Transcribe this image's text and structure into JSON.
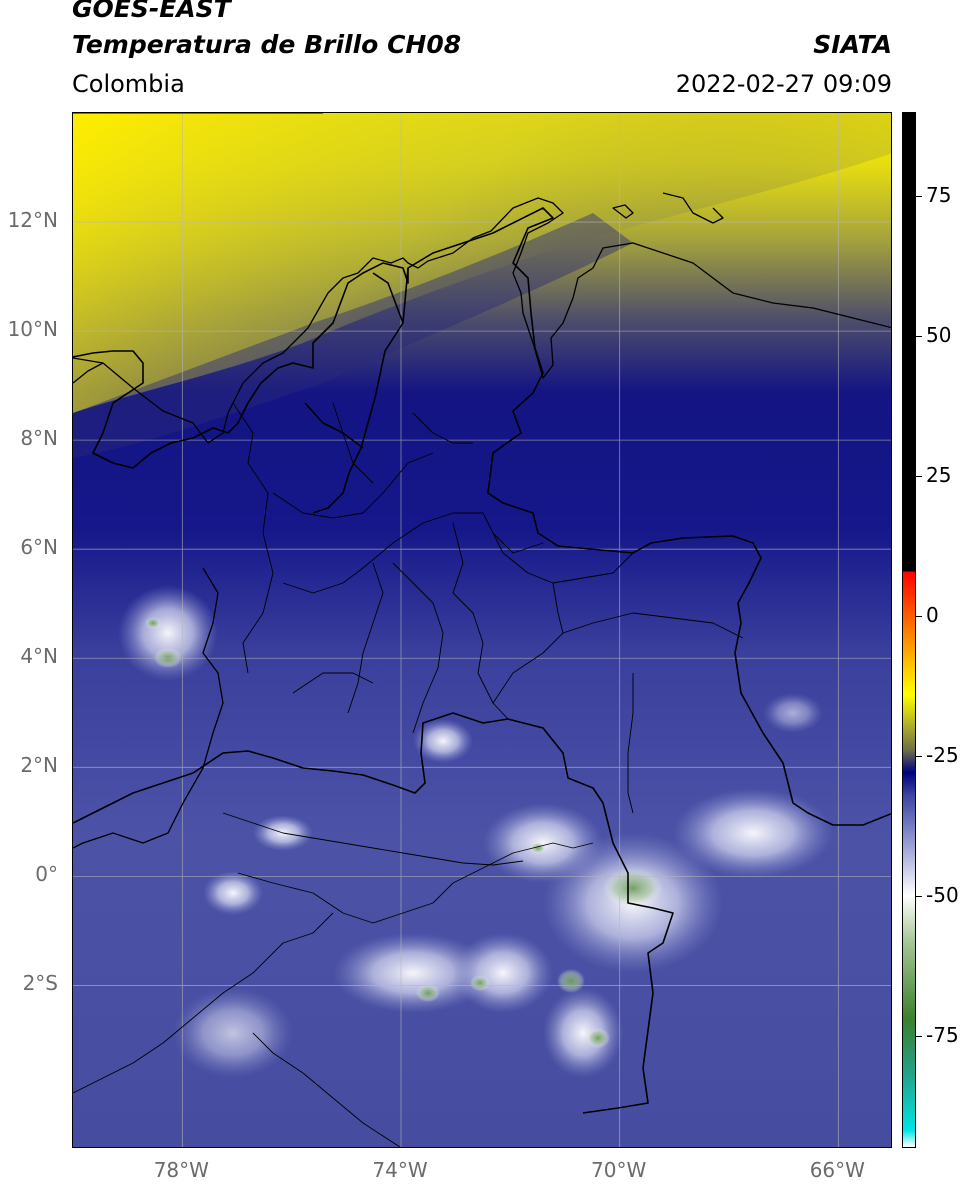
{
  "header": {
    "satellite": "GOES-EAST",
    "product": "Temperatura de Brillo CH08",
    "org": "SIATA",
    "region": "Colombia",
    "datetime": "2022-02-27 09:09"
  },
  "map": {
    "lat_range": [
      -5,
      14
    ],
    "lon_range": [
      -80,
      -65
    ],
    "lat_ticks": [
      {
        "value": 12,
        "label": "12°N"
      },
      {
        "value": 10,
        "label": "10°N"
      },
      {
        "value": 8,
        "label": "8°N"
      },
      {
        "value": 6,
        "label": "6°N"
      },
      {
        "value": 4,
        "label": "4°N"
      },
      {
        "value": 2,
        "label": "2°N"
      },
      {
        "value": 0,
        "label": "0°"
      },
      {
        "value": -2,
        "label": "2°S"
      }
    ],
    "lon_ticks": [
      {
        "value": -78,
        "label": "78°W"
      },
      {
        "value": -74,
        "label": "74°W"
      },
      {
        "value": -70,
        "label": "70°W"
      },
      {
        "value": -66,
        "label": "66°W"
      }
    ],
    "gridlines": true
  },
  "colorbar": {
    "range": [
      -95,
      90
    ],
    "ticks": [
      {
        "value": 75,
        "label": "75"
      },
      {
        "value": 50,
        "label": "50"
      },
      {
        "value": 25,
        "label": "25"
      },
      {
        "value": 0,
        "label": "0"
      },
      {
        "value": -25,
        "label": "-25"
      },
      {
        "value": -50,
        "label": "-50"
      },
      {
        "value": -75,
        "label": "-75"
      }
    ],
    "colors": [
      "#ffffff",
      "#00e5e5",
      "#21a38a",
      "#3c7f2c",
      "#a9c79a",
      "#ffffff",
      "#8f95cf",
      "#3d44a0",
      "#000080",
      "#6e6e4a",
      "#ffff00",
      "#ff8c00",
      "#ff0000",
      "#000000"
    ]
  }
}
